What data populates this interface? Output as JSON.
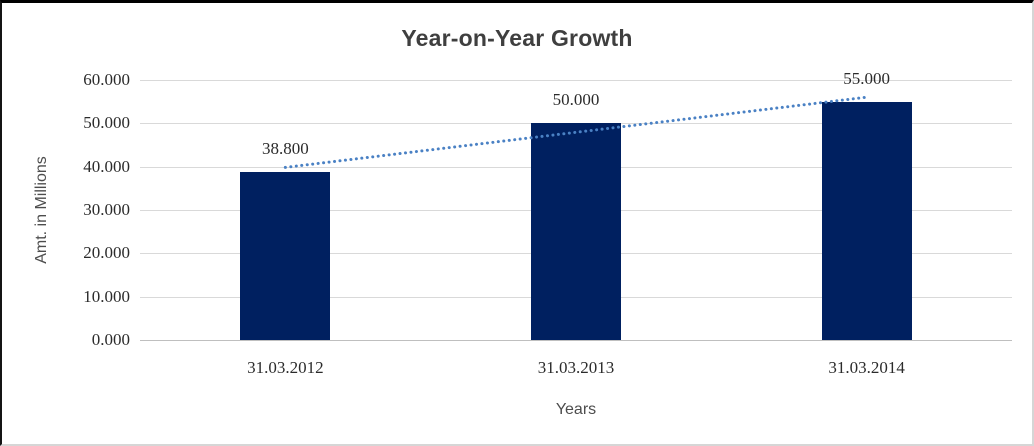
{
  "chart_data": {
    "type": "bar",
    "title": "Year-on-Year Growth",
    "xlabel": "Years",
    "ylabel": "Amt. in Millions",
    "categories": [
      "31.03.2012",
      "31.03.2013",
      "31.03.2014"
    ],
    "values": [
      38800,
      50000,
      55000
    ],
    "value_labels": [
      "38.800",
      "50.000",
      "55.000"
    ],
    "ylim": [
      0,
      60000
    ],
    "ytick_interval": 10000,
    "ytick_labels": [
      "0.000",
      "10.000",
      "20.000",
      "30.000",
      "40.000",
      "50.000",
      "60.000"
    ],
    "grid": true,
    "legend": false,
    "trendline": {
      "type": "linear",
      "style": "dotted",
      "endpoint_fit_values": [
        39833,
        56033
      ]
    },
    "colors": {
      "bar": "#002060",
      "trendline": "#4a81c4",
      "gridline": "#d9d9d9",
      "axis_line": "#bfbfbf",
      "title_text": "#3f3f3f",
      "tick_text": "#2b2b2b",
      "axis_title_text": "#4d4d4d"
    }
  }
}
